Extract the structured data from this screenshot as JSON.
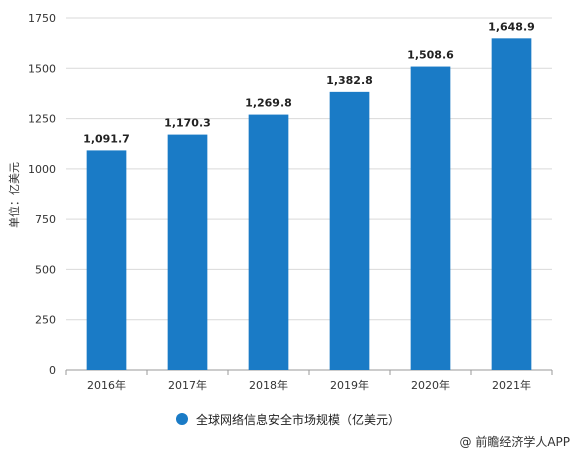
{
  "colors": {
    "bar": "#1a7bc6",
    "grid": "#d9d9d9",
    "axis": "#9a9a9a"
  },
  "chart_data": {
    "type": "bar",
    "categories": [
      "2016年",
      "2017年",
      "2018年",
      "2019年",
      "2020年",
      "2021年"
    ],
    "values": [
      1091.7,
      1170.3,
      1269.8,
      1382.8,
      1508.6,
      1648.9
    ],
    "value_labels": [
      "1,091.7",
      "1,170.3",
      "1,269.8",
      "1,382.8",
      "1,508.6",
      "1,648.9"
    ],
    "ylabel": "单位：亿美元",
    "ylim": [
      0,
      1750
    ],
    "yticks": [
      0,
      250,
      500,
      750,
      1000,
      1250,
      1500,
      1750
    ],
    "grid": true,
    "legend_position": "bottom",
    "series": [
      {
        "name": "全球网络信息安全市场规模（亿美元）"
      }
    ]
  },
  "source_label": "@ 前瞻经济学人APP"
}
